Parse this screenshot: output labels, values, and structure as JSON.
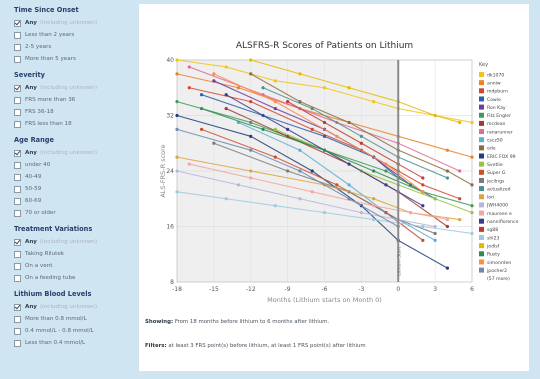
{
  "sidebar": {
    "sections": [
      {
        "title": "Time Since Onset",
        "options": [
          {
            "label": "Any",
            "note": "(including unknown)",
            "checked": true
          },
          {
            "label": "Less than 2 years"
          },
          {
            "label": "2-5 years"
          },
          {
            "label": "More than 5 years"
          }
        ]
      },
      {
        "title": "Severity",
        "options": [
          {
            "label": "Any",
            "note": "(including unknown)",
            "checked": true
          },
          {
            "label": "FRS more than 36"
          },
          {
            "label": "FRS 36-18"
          },
          {
            "label": "FRS less than 18"
          }
        ]
      },
      {
        "title": "Age Range",
        "options": [
          {
            "label": "Any",
            "note": "(including unknown)",
            "checked": true
          },
          {
            "label": "under 40"
          },
          {
            "label": "40-49"
          },
          {
            "label": "50-59"
          },
          {
            "label": "60-69"
          },
          {
            "label": "70 or older"
          }
        ]
      },
      {
        "title": "Treatment Variations",
        "options": [
          {
            "label": "Any",
            "note": "(including unknown)",
            "checked": true
          },
          {
            "label": "Taking Rilutek"
          },
          {
            "label": "On a vent"
          },
          {
            "label": "On a feeding tube"
          }
        ]
      },
      {
        "title": "Lithium Blood Levels",
        "options": [
          {
            "label": "Any",
            "note": "(including unknown)",
            "checked": true
          },
          {
            "label": "More than 0.8 mmol/L"
          },
          {
            "label": "0.4 mmol/L - 0.8 mmol/L"
          },
          {
            "label": "Less than 0.4 mmol/L"
          }
        ]
      }
    ]
  },
  "info": {
    "showing_label": "Showing:",
    "showing_text": "From 18 months before lithium to 6 months after lithium.",
    "filters_label": "Filters:",
    "filters_text": "at least 3 FRS point(s) before lithium, at least 1 FRS point(s) after lithium"
  },
  "chart_data": {
    "type": "line",
    "title": "ALSFRS-R Scores of Patients on Lithium",
    "xlabel": "Months (Lithium starts on Month 0)",
    "ylabel": "ALS-FRS-R score",
    "xlim": [
      -18,
      6
    ],
    "ylim": [
      8,
      40
    ],
    "xticks": [
      -18,
      -15,
      -12,
      -9,
      -6,
      -3,
      0,
      3,
      6
    ],
    "yticks": [
      8,
      16,
      24,
      32,
      40
    ],
    "marker_label": "Lithium Start",
    "legend_title": "Key",
    "legend_position": "right",
    "series": [
      {
        "name": "dk1070",
        "color": "#f0c419",
        "x": [
          -18,
          -14,
          -10,
          -6,
          -2,
          0,
          3,
          6
        ],
        "y": [
          40,
          39,
          37,
          36,
          34,
          33,
          32,
          31
        ]
      },
      {
        "name": "anniw",
        "color": "#e8832a",
        "x": [
          -18,
          -13,
          -8,
          -4,
          0,
          4,
          6
        ],
        "y": [
          38,
          36,
          33,
          31,
          29,
          27,
          26
        ]
      },
      {
        "name": "mdpburn",
        "color": "#d4452b",
        "x": [
          -17,
          -12,
          -7,
          -3,
          0,
          2,
          5
        ],
        "y": [
          36,
          34,
          30,
          27,
          24,
          22,
          20
        ]
      },
      {
        "name": "Cowie",
        "color": "#2f5ea8",
        "x": [
          -16,
          -11,
          -6,
          -2,
          0,
          3
        ],
        "y": [
          35,
          32,
          29,
          26,
          23,
          20
        ]
      },
      {
        "name": "Ron Kay",
        "color": "#6b3fa0",
        "x": [
          -15,
          -10,
          -6,
          -2,
          1
        ],
        "y": [
          37,
          33,
          30,
          26,
          22
        ]
      },
      {
        "name": "Fitz Engler",
        "color": "#3e9a55",
        "x": [
          -18,
          -12,
          -6,
          -1,
          2,
          6
        ],
        "y": [
          34,
          31,
          27,
          24,
          21,
          19
        ]
      },
      {
        "name": "mcdean",
        "color": "#a23a3a",
        "x": [
          -14,
          -9,
          -4,
          0,
          4
        ],
        "y": [
          33,
          29,
          25,
          21,
          16
        ]
      },
      {
        "name": "ranarunner",
        "color": "#e06b9a",
        "x": [
          -17,
          -11,
          -5,
          0,
          5
        ],
        "y": [
          39,
          35,
          31,
          28,
          24
        ]
      },
      {
        "name": "cscz50",
        "color": "#5ab0d8",
        "x": [
          -13,
          -8,
          -4,
          -1,
          3
        ],
        "y": [
          31,
          27,
          22,
          18,
          14
        ]
      },
      {
        "name": "ede",
        "color": "#8c6d3f",
        "x": [
          -12,
          -8,
          -4,
          0,
          4,
          6
        ],
        "y": [
          38,
          34,
          31,
          27,
          24,
          22
        ]
      },
      {
        "name": "ERIC FOX 99",
        "color": "#1f3d7a",
        "x": [
          -18,
          -12,
          -7,
          -3,
          0,
          4
        ],
        "y": [
          32,
          29,
          24,
          19,
          14,
          10
        ]
      },
      {
        "name": "Svetlie",
        "color": "#9bc23c",
        "x": [
          -10,
          -6,
          -3,
          0,
          3,
          6
        ],
        "y": [
          30,
          27,
          24,
          22,
          20,
          18
        ]
      },
      {
        "name": "Super G",
        "color": "#c94f2f",
        "x": [
          -16,
          -10,
          -5,
          -1,
          2
        ],
        "y": [
          30,
          26,
          22,
          18,
          14
        ]
      },
      {
        "name": "jecilngs",
        "color": "#7a7a7a",
        "x": [
          -15,
          -9,
          -4,
          0,
          3
        ],
        "y": [
          28,
          24,
          21,
          17,
          15
        ]
      },
      {
        "name": "actualized",
        "color": "#4d8f8f",
        "x": [
          -11,
          -7,
          -3,
          0,
          4
        ],
        "y": [
          36,
          33,
          29,
          26,
          23
        ]
      },
      {
        "name": "lori",
        "color": "#d9a441",
        "x": [
          -18,
          -12,
          -6,
          -2,
          1,
          5
        ],
        "y": [
          26,
          24,
          22,
          20,
          18,
          17
        ]
      },
      {
        "name": "JWH4000",
        "color": "#b5b5e0",
        "x": [
          -18,
          -13,
          -8,
          -3,
          0,
          3
        ],
        "y": [
          24,
          22,
          20,
          18,
          17,
          16
        ]
      },
      {
        "name": "maureen e",
        "color": "#f4a6a0",
        "x": [
          -17,
          -12,
          -7,
          -2,
          1,
          4
        ],
        "y": [
          25,
          23,
          21,
          19,
          18,
          17
        ]
      },
      {
        "name": "nanniflorence",
        "color": "#3a3a8c",
        "x": [
          -14,
          -9,
          -4,
          -1,
          2
        ],
        "y": [
          35,
          30,
          25,
          22,
          19
        ]
      },
      {
        "name": "sg88",
        "color": "#c0392b",
        "x": [
          -9,
          -6,
          -3,
          0,
          2
        ],
        "y": [
          34,
          31,
          28,
          25,
          23
        ]
      },
      {
        "name": "shl23",
        "color": "#9ecae1",
        "x": [
          -18,
          -14,
          -10,
          -6,
          -2,
          2,
          6
        ],
        "y": [
          21,
          20,
          19,
          18,
          17,
          16,
          15
        ]
      },
      {
        "name": "jodlsf",
        "color": "#e6b800",
        "x": [
          -12,
          -8,
          -4,
          0,
          3,
          5
        ],
        "y": [
          40,
          38,
          36,
          34,
          32,
          31
        ]
      },
      {
        "name": "Rusty",
        "color": "#2e8b57",
        "x": [
          -16,
          -11,
          -6,
          -2,
          2
        ],
        "y": [
          33,
          30,
          27,
          24,
          21
        ]
      },
      {
        "name": "simonrden",
        "color": "#ff8c42",
        "x": [
          -15,
          -10,
          -5,
          -1,
          2
        ],
        "y": [
          38,
          34,
          29,
          25,
          21
        ]
      },
      {
        "name": "jpocher2",
        "color": "#6a8caf",
        "x": [
          -18,
          -12,
          -8,
          -4,
          0
        ],
        "y": [
          30,
          27,
          24,
          20,
          16
        ]
      }
    ],
    "legend_more": "(57 more)"
  }
}
